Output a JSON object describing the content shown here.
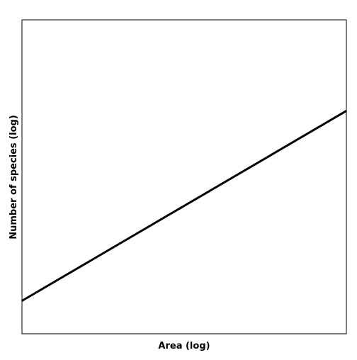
{
  "chart_data": {
    "type": "line",
    "title": "",
    "xlabel": "Area (log)",
    "ylabel": "Number of species (log)",
    "x_ticks": [],
    "y_ticks": [],
    "grid": false,
    "legend": "none",
    "xlim": [
      0,
      1
    ],
    "ylim": [
      0,
      1
    ],
    "series": [
      {
        "x": [
          0,
          1
        ],
        "y": [
          0.105,
          0.71
        ],
        "color": "#000000"
      }
    ]
  }
}
